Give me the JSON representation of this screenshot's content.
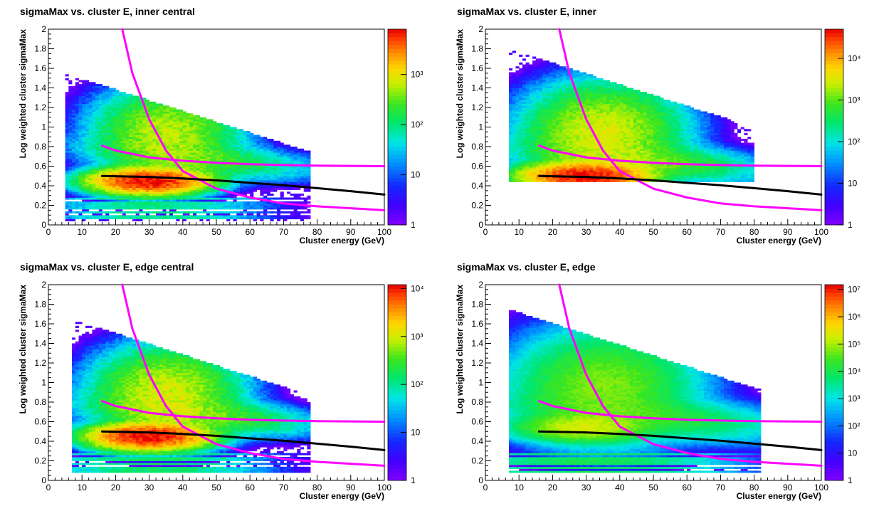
{
  "chart_data": [
    {
      "type": "heatmap",
      "title": "sigmaMax vs. cluster E, inner central",
      "xlabel": "Cluster energy (GeV)",
      "ylabel": "Log weighted cluster sigmaMax",
      "xlim": [
        0,
        100
      ],
      "ylim": [
        0,
        2
      ],
      "x_ticks": [
        "0",
        "10",
        "20",
        "30",
        "40",
        "50",
        "60",
        "70",
        "80",
        "90",
        "100"
      ],
      "y_ticks": [
        "0",
        "0.2",
        "0.4",
        "0.6",
        "0.8",
        "1",
        "1.2",
        "1.4",
        "1.6",
        "1.8",
        "2"
      ],
      "color_scale": "log",
      "color_ticks": [
        {
          "label": "1",
          "value": 1
        },
        {
          "label": "10",
          "value": 10
        },
        {
          "label": "10²",
          "value": 100
        },
        {
          "label": "10³",
          "value": 1000
        }
      ],
      "color_max": 8000,
      "density": {
        "core": {
          "x": 30,
          "y": 0.45,
          "peak": 8000
        },
        "upper_lobe": {
          "x": 35,
          "y": 0.95,
          "peak": 600
        },
        "x_range": [
          5,
          78
        ],
        "y_range": [
          0.05,
          1.55
        ],
        "band_rows": [
          0.27,
          0.22,
          0.18,
          0.13,
          0.08
        ]
      },
      "curves": [
        {
          "color": "#ff00ff",
          "x": [
            22,
            25,
            30,
            35,
            40,
            50,
            60,
            70,
            80,
            90,
            100
          ],
          "y": [
            2.0,
            1.55,
            1.08,
            0.76,
            0.55,
            0.37,
            0.28,
            0.22,
            0.19,
            0.17,
            0.15
          ]
        },
        {
          "color": "#ff00ff",
          "x": [
            16,
            20,
            30,
            40,
            50,
            60,
            70,
            80,
            90,
            100
          ],
          "y": [
            0.81,
            0.76,
            0.69,
            0.655,
            0.635,
            0.62,
            0.612,
            0.606,
            0.603,
            0.6
          ]
        },
        {
          "color": "#000000",
          "x": [
            16,
            30,
            40,
            50,
            60,
            70,
            80,
            90,
            100
          ],
          "y": [
            0.5,
            0.49,
            0.475,
            0.455,
            0.43,
            0.405,
            0.375,
            0.345,
            0.31
          ]
        }
      ]
    },
    {
      "type": "heatmap",
      "title": "sigmaMax vs. cluster E, inner",
      "xlabel": "Cluster energy (GeV)",
      "ylabel": "Log weighted cluster sigmaMax",
      "xlim": [
        0,
        100
      ],
      "ylim": [
        0,
        2
      ],
      "x_ticks": [
        "0",
        "10",
        "20",
        "30",
        "40",
        "50",
        "60",
        "70",
        "80",
        "90",
        "100"
      ],
      "y_ticks": [
        "0",
        "0.2",
        "0.4",
        "0.6",
        "0.8",
        "1",
        "1.2",
        "1.4",
        "1.6",
        "1.8",
        "2"
      ],
      "color_scale": "log",
      "color_ticks": [
        {
          "label": "1",
          "value": 1
        },
        {
          "label": "10",
          "value": 10
        },
        {
          "label": "10²",
          "value": 100
        },
        {
          "label": "10³",
          "value": 1000
        },
        {
          "label": "10⁴",
          "value": 10000
        }
      ],
      "color_max": 50000,
      "density": {
        "core": {
          "x": 30,
          "y": 0.5,
          "peak": 50000
        },
        "upper_lobe": {
          "x": 35,
          "y": 0.95,
          "peak": 3000
        },
        "x_range": [
          7,
          80
        ],
        "y_range": [
          0.44,
          1.8
        ],
        "band_rows": []
      },
      "curves": [
        {
          "color": "#ff00ff",
          "x": [
            22,
            25,
            30,
            35,
            40,
            50,
            60,
            70,
            80,
            90,
            100
          ],
          "y": [
            2.0,
            1.55,
            1.08,
            0.76,
            0.55,
            0.37,
            0.28,
            0.22,
            0.19,
            0.17,
            0.15
          ]
        },
        {
          "color": "#ff00ff",
          "x": [
            16,
            20,
            30,
            40,
            50,
            60,
            70,
            80,
            90,
            100
          ],
          "y": [
            0.81,
            0.76,
            0.69,
            0.655,
            0.635,
            0.62,
            0.612,
            0.606,
            0.603,
            0.6
          ]
        },
        {
          "color": "#000000",
          "x": [
            16,
            30,
            40,
            50,
            60,
            70,
            80,
            90,
            100
          ],
          "y": [
            0.5,
            0.49,
            0.475,
            0.455,
            0.43,
            0.405,
            0.375,
            0.345,
            0.31
          ]
        }
      ]
    },
    {
      "type": "heatmap",
      "title": "sigmaMax vs. cluster E, edge central",
      "xlabel": "Cluster energy (GeV)",
      "ylabel": "Log weighted cluster sigmaMax",
      "xlim": [
        0,
        100
      ],
      "ylim": [
        0,
        2
      ],
      "x_ticks": [
        "0",
        "10",
        "20",
        "30",
        "40",
        "50",
        "60",
        "70",
        "80",
        "90",
        "100"
      ],
      "y_ticks": [
        "0",
        "0.2",
        "0.4",
        "0.6",
        "0.8",
        "1",
        "1.2",
        "1.4",
        "1.6",
        "1.8",
        "2"
      ],
      "color_scale": "log",
      "color_ticks": [
        {
          "label": "1",
          "value": 1
        },
        {
          "label": "10",
          "value": 10
        },
        {
          "label": "10²",
          "value": 100
        },
        {
          "label": "10³",
          "value": 1000
        },
        {
          "label": "10⁴",
          "value": 10000
        }
      ],
      "color_max": 12000,
      "density": {
        "core": {
          "x": 30,
          "y": 0.45,
          "peak": 12000
        },
        "upper_lobe": {
          "x": 35,
          "y": 0.9,
          "peak": 1000
        },
        "x_range": [
          7,
          78
        ],
        "y_range": [
          0.08,
          1.65
        ],
        "band_rows": [
          0.27,
          0.22,
          0.17,
          0.12,
          0.08
        ]
      },
      "curves": [
        {
          "color": "#ff00ff",
          "x": [
            22,
            25,
            30,
            35,
            40,
            50,
            60,
            70,
            80,
            90,
            100
          ],
          "y": [
            2.0,
            1.55,
            1.08,
            0.76,
            0.55,
            0.37,
            0.28,
            0.22,
            0.19,
            0.17,
            0.15
          ]
        },
        {
          "color": "#ff00ff",
          "x": [
            16,
            20,
            30,
            40,
            50,
            60,
            70,
            80,
            90,
            100
          ],
          "y": [
            0.81,
            0.76,
            0.69,
            0.655,
            0.635,
            0.62,
            0.612,
            0.606,
            0.603,
            0.6
          ]
        },
        {
          "color": "#000000",
          "x": [
            16,
            30,
            40,
            50,
            60,
            70,
            80,
            90,
            100
          ],
          "y": [
            0.5,
            0.49,
            0.475,
            0.455,
            0.43,
            0.405,
            0.375,
            0.345,
            0.31
          ]
        }
      ]
    },
    {
      "type": "heatmap",
      "title": "sigmaMax vs. cluster E, edge",
      "xlabel": "Cluster energy (GeV)",
      "ylabel": "Log weighted cluster sigmaMax",
      "xlim": [
        0,
        100
      ],
      "ylim": [
        0,
        2
      ],
      "x_ticks": [
        "0",
        "10",
        "20",
        "30",
        "40",
        "50",
        "60",
        "70",
        "80",
        "90",
        "100"
      ],
      "y_ticks": [
        "0",
        "0.2",
        "0.4",
        "0.6",
        "0.8",
        "1",
        "1.2",
        "1.4",
        "1.6",
        "1.8",
        "2"
      ],
      "color_scale": "log",
      "color_ticks": [
        {
          "label": "1",
          "value": 1
        },
        {
          "label": "10",
          "value": 10
        },
        {
          "label": "10²",
          "value": 100
        },
        {
          "label": "10³",
          "value": 1000
        },
        {
          "label": "10⁴",
          "value": 10000
        },
        {
          "label": "10⁵",
          "value": 100000
        },
        {
          "label": "10⁶",
          "value": 1000000
        },
        {
          "label": "10⁷",
          "value": 10000000
        }
      ],
      "color_max": 15000000,
      "density": {
        "core": {
          "x": 30,
          "y": 0.55,
          "peak": 200000
        },
        "upper_lobe": {
          "x": 35,
          "y": 0.95,
          "peak": 60000
        },
        "x_range": [
          7,
          82
        ],
        "y_range": [
          0.08,
          1.75
        ],
        "band_rows": [
          0.27,
          0.22,
          0.18,
          0.13,
          0.09
        ]
      },
      "curves": [
        {
          "color": "#ff00ff",
          "x": [
            22,
            25,
            30,
            35,
            40,
            50,
            60,
            70,
            80,
            90,
            100
          ],
          "y": [
            2.0,
            1.55,
            1.08,
            0.76,
            0.55,
            0.37,
            0.28,
            0.22,
            0.19,
            0.17,
            0.15
          ]
        },
        {
          "color": "#ff00ff",
          "x": [
            16,
            20,
            30,
            40,
            50,
            60,
            70,
            80,
            90,
            100
          ],
          "y": [
            0.81,
            0.76,
            0.69,
            0.655,
            0.635,
            0.62,
            0.612,
            0.606,
            0.603,
            0.6
          ]
        },
        {
          "color": "#000000",
          "x": [
            16,
            30,
            40,
            50,
            60,
            70,
            80,
            90,
            100
          ],
          "y": [
            0.5,
            0.49,
            0.475,
            0.455,
            0.43,
            0.405,
            0.375,
            0.345,
            0.31
          ]
        }
      ]
    }
  ]
}
